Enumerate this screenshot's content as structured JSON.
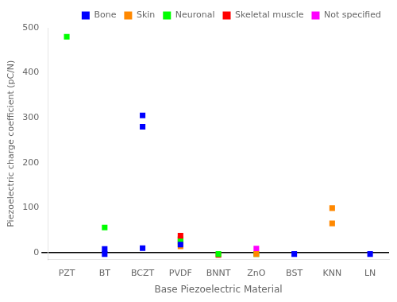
{
  "chart_data": {
    "type": "scatter",
    "xlabel": "Base Piezoelectric Material",
    "ylabel": "Piezoelectric charge coefficient (pC/N)",
    "categories": [
      "PZT",
      "BT",
      "BCZT",
      "PVDF",
      "BNNT",
      "ZnO",
      "BST",
      "KNN",
      "LN"
    ],
    "series": [
      {
        "name": "Bone",
        "color": "#0000ff",
        "x": [
          "BT",
          "BT",
          "BCZT",
          "BCZT",
          "BCZT",
          "PVDF",
          "BST",
          "LN"
        ],
        "values": [
          8,
          -3,
          305,
          280,
          10,
          18,
          -3,
          -3
        ]
      },
      {
        "name": "Skin",
        "color": "#ff8800",
        "x": [
          "PVDF",
          "ZnO",
          "KNN",
          "KNN"
        ],
        "values": [
          14,
          -3,
          99,
          65
        ]
      },
      {
        "name": "Neuronal",
        "color": "#00ff00",
        "x": [
          "PZT",
          "BT",
          "PVDF",
          "BNNT",
          "ZnO"
        ],
        "values": [
          480,
          56,
          25,
          -3,
          -3
        ]
      },
      {
        "name": "Skeletal muscle",
        "color": "#ff0000",
        "x": [
          "PVDF",
          "PVDF",
          "BNNT"
        ],
        "values": [
          38,
          30,
          -5
        ]
      },
      {
        "name": "Not specified",
        "color": "#ff00ff",
        "x": [
          "ZnO"
        ],
        "values": [
          9
        ]
      }
    ],
    "ylim": [
      -15,
      500
    ],
    "yticks": [
      0,
      100,
      200,
      300,
      400,
      500
    ],
    "marker": "square",
    "legend": "upper right",
    "grid": false
  }
}
